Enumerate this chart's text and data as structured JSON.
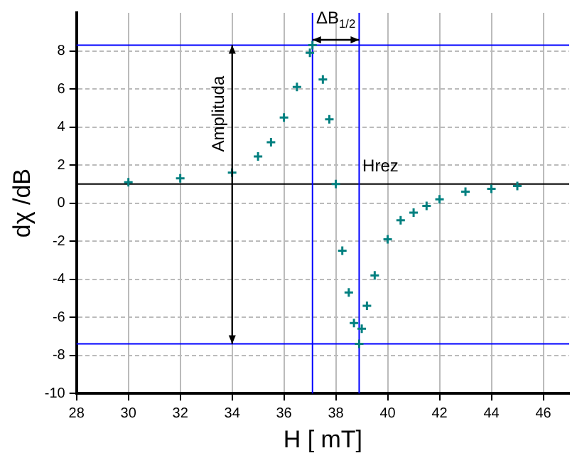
{
  "chart_data": {
    "type": "scatter",
    "xlabel": "H [ mT]",
    "ylabel": "dχ /dB",
    "xlim": [
      28,
      47
    ],
    "xticks": [
      28,
      30,
      32,
      34,
      36,
      38,
      40,
      42,
      44,
      46
    ],
    "ylim": [
      -10,
      10
    ],
    "yticks": [
      -10,
      -8,
      -6,
      -4,
      -2,
      0,
      2,
      4,
      6,
      8
    ],
    "grid": true,
    "marker": "cross",
    "series": [
      {
        "color": "#008080",
        "x": [
          30,
          32,
          34,
          35,
          35.5,
          36,
          36.5,
          37,
          37.1,
          37.5,
          37.75,
          38,
          38.25,
          38.5,
          38.7,
          38.9,
          39,
          39.2,
          39.5,
          40,
          40.5,
          41,
          41.5,
          42,
          43,
          44,
          45
        ],
        "values": [
          1.1,
          1.3,
          1.6,
          2.45,
          3.2,
          4.5,
          6.1,
          7.9,
          8.3,
          6.5,
          4.4,
          1.0,
          -2.5,
          -4.7,
          -6.3,
          -7.4,
          -6.6,
          -5.4,
          -3.8,
          -1.9,
          -0.9,
          -0.5,
          -0.15,
          0.2,
          0.6,
          0.75,
          0.9
        ]
      }
    ],
    "ref_lines": [
      {
        "axis": "y",
        "value": 1,
        "color": "#000000"
      },
      {
        "axis": "x",
        "value": 37.1,
        "color": "#0000ff"
      },
      {
        "axis": "x",
        "value": 38.9,
        "color": "#0000ff"
      },
      {
        "axis": "y",
        "value": 8.3,
        "color": "#0000ff"
      },
      {
        "axis": "y",
        "value": -7.4,
        "color": "#0000ff"
      }
    ],
    "annotations": [
      "Amplituda",
      "ΔB$_{1/2}$",
      "Hrez"
    ]
  }
}
